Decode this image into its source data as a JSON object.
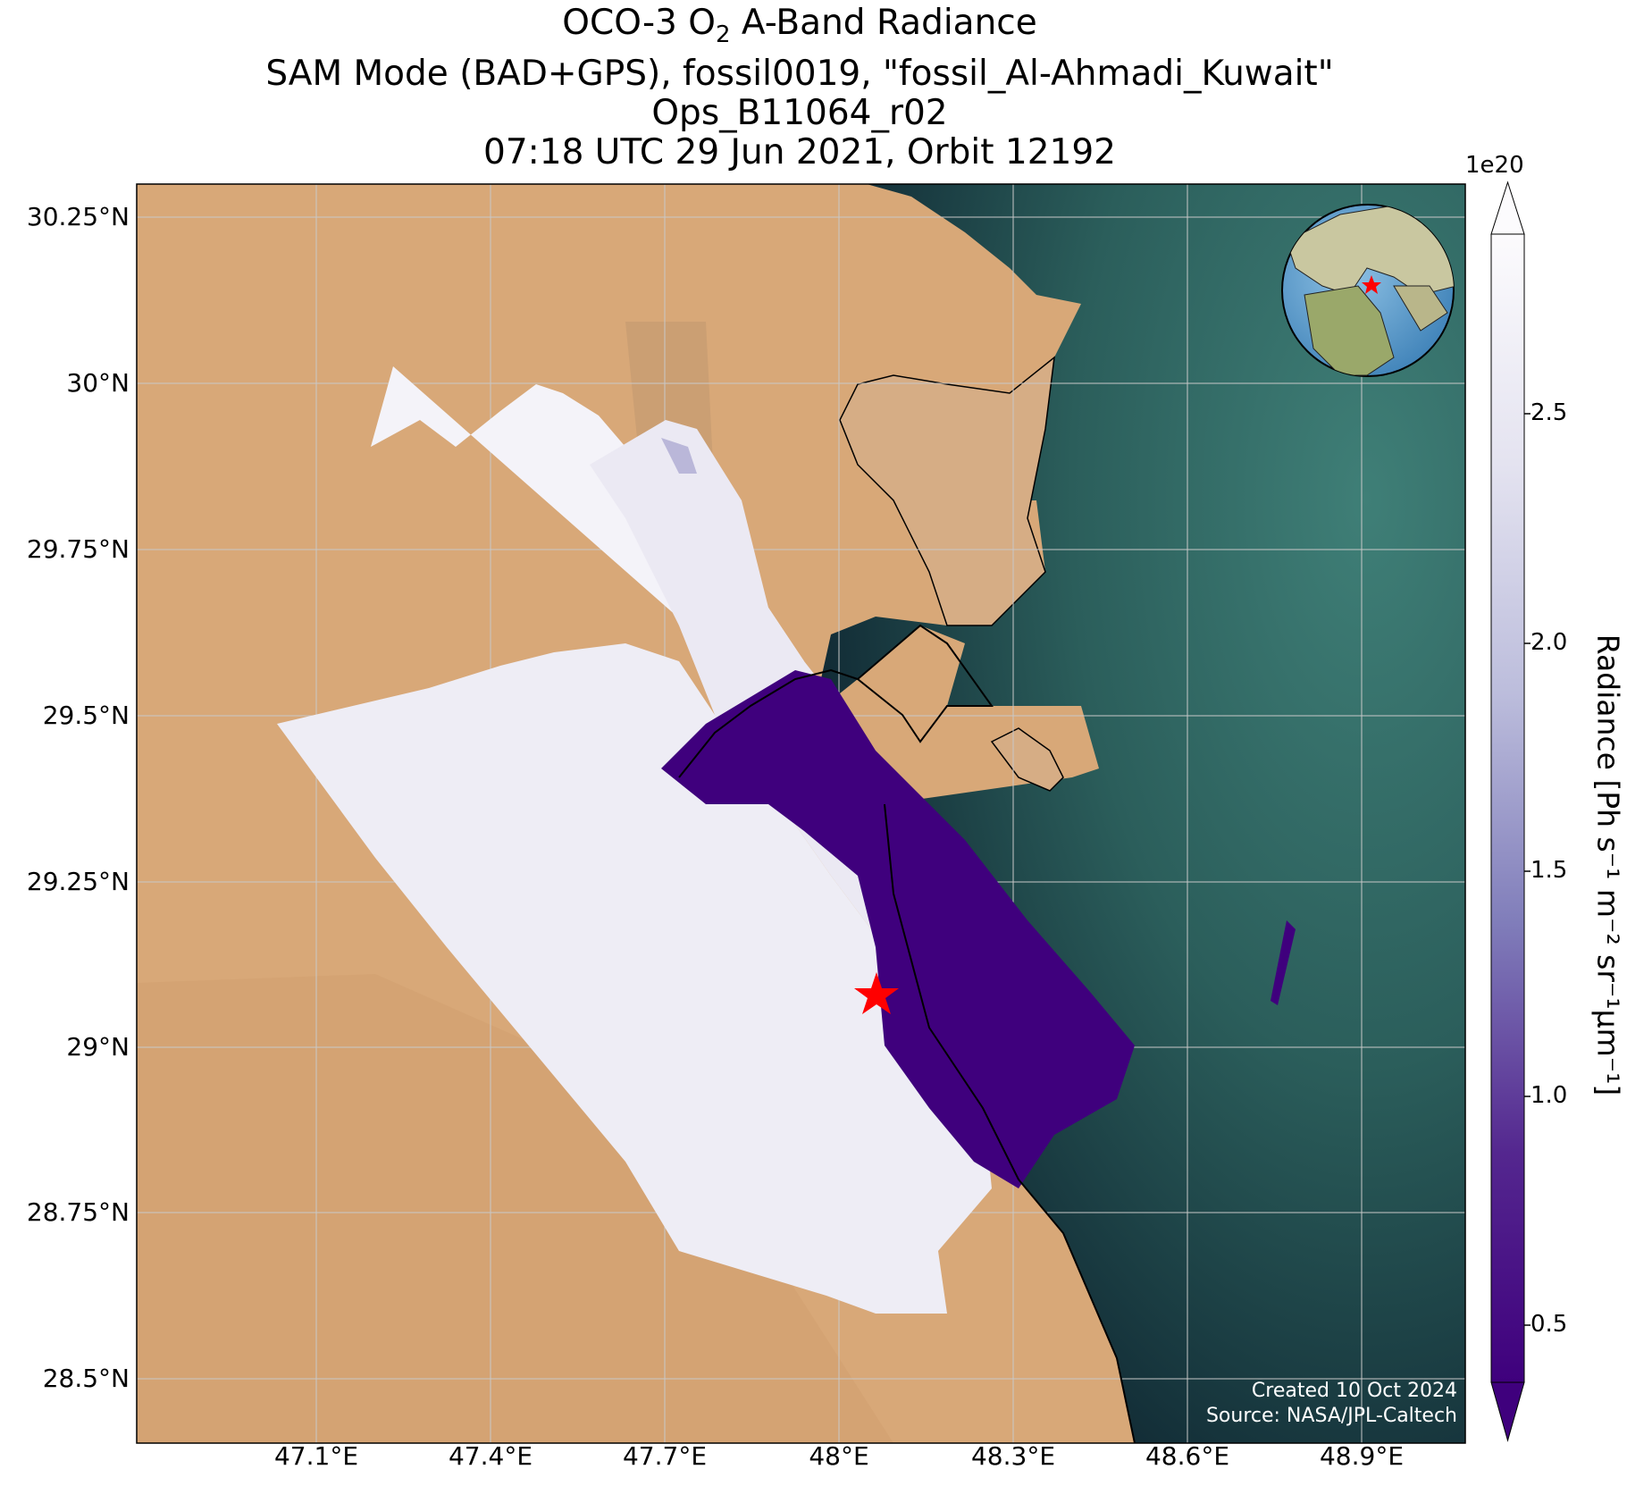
{
  "title": {
    "line1_pre": "OCO-3 O",
    "line1_sub": "2",
    "line1_post": " A-Band Radiance",
    "line2": "SAM Mode (BAD+GPS), fossil0019, \"fossil_Al-Ahmadi_Kuwait\"",
    "line3": "Ops_B11064_r02",
    "line4": "07:18 UTC 29 Jun 2021, Orbit 12192"
  },
  "map": {
    "lat_ticks": [
      {
        "value": 30.25,
        "label": "30.25°N"
      },
      {
        "value": 30.0,
        "label": "30°N"
      },
      {
        "value": 29.75,
        "label": "29.75°N"
      },
      {
        "value": 29.5,
        "label": "29.5°N"
      },
      {
        "value": 29.25,
        "label": "29.25°N"
      },
      {
        "value": 29.0,
        "label": "29°N"
      },
      {
        "value": 28.75,
        "label": "28.75°N"
      },
      {
        "value": 28.5,
        "label": "28.5°N"
      }
    ],
    "lon_ticks": [
      {
        "value": 47.1,
        "label": "47.1°E"
      },
      {
        "value": 47.4,
        "label": "47.4°E"
      },
      {
        "value": 47.7,
        "label": "47.7°E"
      },
      {
        "value": 48.0,
        "label": "48°E"
      },
      {
        "value": 48.3,
        "label": "48.3°E"
      },
      {
        "value": 48.6,
        "label": "48.6°E"
      },
      {
        "value": 48.9,
        "label": "48.9°E"
      }
    ],
    "lat_range": [
      28.41,
      30.3
    ],
    "lon_range": [
      46.8,
      49.17
    ],
    "target_marker": {
      "lon": 48.07,
      "lat": 29.1,
      "color": "#ff0000"
    },
    "colors": {
      "desert": "#d8a878",
      "sea_light": "#4f8a7e",
      "sea_dark": "#0e2430",
      "radiance_low": "#3f007d",
      "radiance_high": "#fcfbfd"
    }
  },
  "colorbar": {
    "exponent": "1e20",
    "title": "Radiance [Ph s⁻¹ m⁻² sr⁻¹μm⁻¹]",
    "ticks": [
      {
        "value": 0.5,
        "label": "0.5"
      },
      {
        "value": 1.0,
        "label": "1.0"
      },
      {
        "value": 1.5,
        "label": "1.5"
      },
      {
        "value": 2.0,
        "label": "2.0"
      },
      {
        "value": 2.5,
        "label": "2.5"
      }
    ],
    "range": [
      0.3,
      2.8
    ],
    "colormap": "Purples_r"
  },
  "credits": {
    "created": "Created 10 Oct 2024",
    "source": "Source: NASA/JPL-Caltech"
  }
}
